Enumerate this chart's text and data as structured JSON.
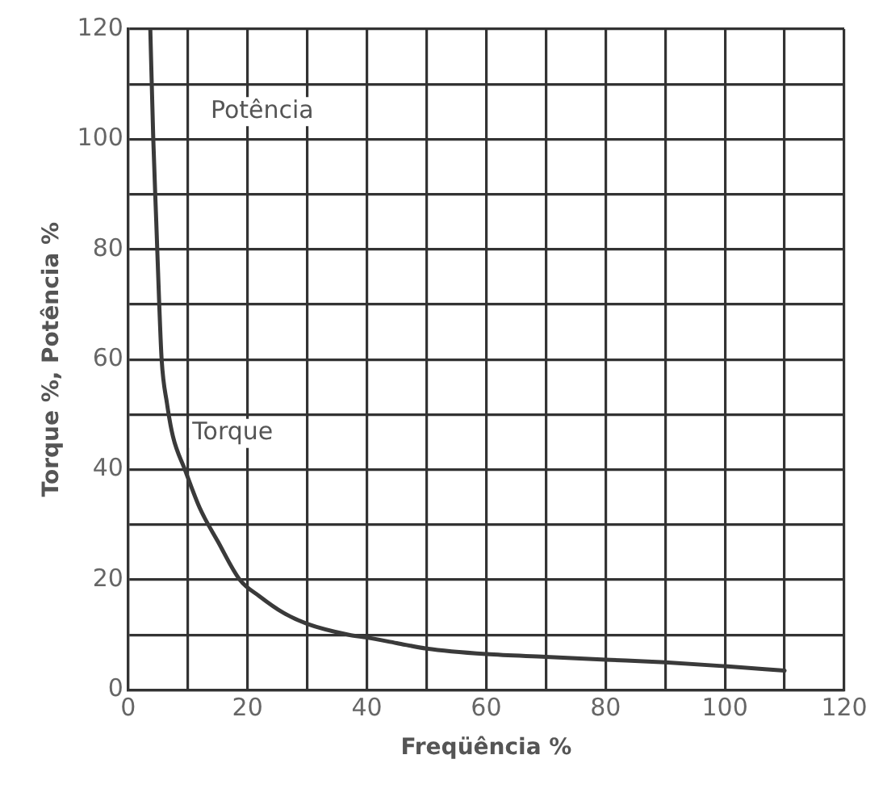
{
  "chart_data": {
    "type": "line",
    "xlabel": "Freqüência %",
    "ylabel": "Torque %, Potência %",
    "annotations": [
      "Potência"
    ],
    "xlim": [
      0,
      120
    ],
    "ylim": [
      0,
      120
    ],
    "xticks": [
      0,
      {
        "value": 10,
        "label": null
      },
      20,
      {
        "value": 30,
        "label": null
      },
      40,
      {
        "value": 50,
        "label": null
      },
      60,
      {
        "value": 70,
        "label": null
      },
      80,
      {
        "value": 90,
        "label": null
      },
      100,
      {
        "value": 110,
        "label": null
      },
      120
    ],
    "yticks": [
      0,
      {
        "value": 10,
        "label": null
      },
      20,
      {
        "value": 30,
        "label": null
      },
      40,
      {
        "value": 50,
        "label": null
      },
      60,
      {
        "value": 70,
        "label": null
      },
      80,
      {
        "value": 90,
        "label": null
      },
      100,
      {
        "value": 110,
        "label": null
      },
      120
    ],
    "grid": true,
    "legend": false,
    "marker": "none",
    "line_style": "solid",
    "series": [
      {
        "name": "Torque",
        "color": "#3a3a3a",
        "x": [
          3.7,
          4.2,
          4.7,
          5.2,
          5.6,
          6.5,
          7.5,
          9.5,
          12,
          15,
          18.7,
          22,
          26,
          30,
          37,
          40,
          45,
          50,
          60,
          70,
          80,
          90,
          100,
          110
        ],
        "values": [
          120,
          100,
          85,
          70,
          60,
          52,
          46,
          40,
          33,
          27,
          20,
          17,
          14,
          12,
          10,
          9.5,
          8.5,
          7.5,
          6.5,
          6,
          5.5,
          5,
          4.3,
          3.5
        ]
      }
    ]
  }
}
